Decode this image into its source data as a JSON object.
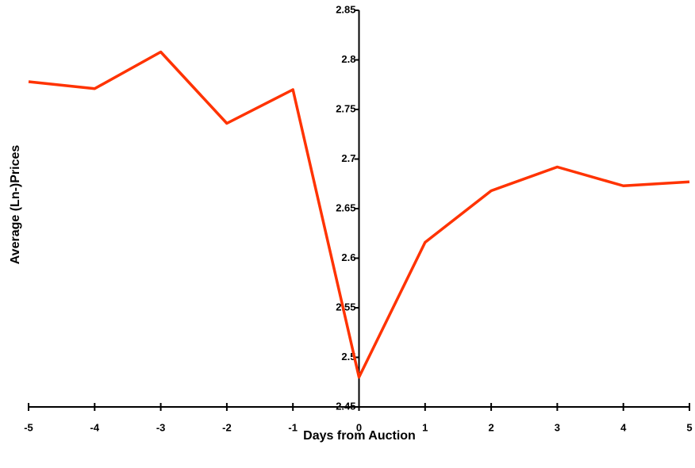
{
  "chart_data": {
    "type": "line",
    "x_label": "Days from Auction",
    "y_label": "Average (Ln-)Prices",
    "x": [
      -5,
      -4,
      -3,
      -2,
      -1,
      0,
      1,
      2,
      3,
      4,
      5
    ],
    "series": [
      {
        "color": "#ff3300",
        "values": [
          2.778,
          2.771,
          2.808,
          2.736,
          2.77,
          2.48,
          2.616,
          2.668,
          2.692,
          2.673,
          2.677
        ]
      }
    ],
    "xlim": [
      -5,
      5
    ],
    "xticks": [
      -5,
      -4,
      -3,
      -2,
      -1,
      0,
      1,
      2,
      3,
      4,
      5
    ],
    "ylim": [
      2.45,
      2.85
    ],
    "yticks": [
      2.45,
      2.5,
      2.55,
      2.6,
      2.65,
      2.7,
      2.75,
      2.8,
      2.85
    ],
    "grid": false
  }
}
